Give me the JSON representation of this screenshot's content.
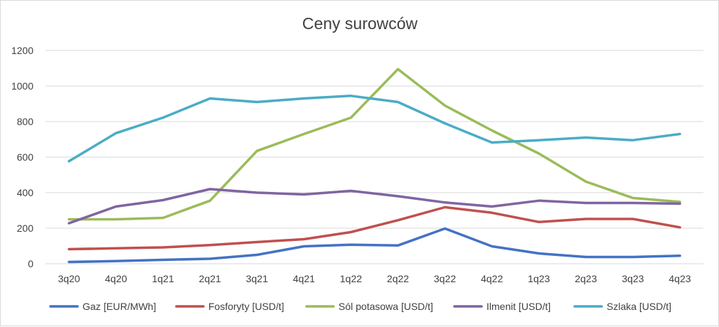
{
  "chart_data": {
    "type": "line",
    "title": "Ceny surowców",
    "xlabel": "",
    "ylabel": "",
    "ylim": [
      0,
      1200
    ],
    "yticks": [
      0,
      200,
      400,
      600,
      800,
      1000,
      1200
    ],
    "grid": true,
    "legend_position": "bottom",
    "categories": [
      "3q20",
      "4q20",
      "1q21",
      "2q21",
      "3q21",
      "4q21",
      "1q22",
      "2q22",
      "3q22",
      "4q22",
      "1q23",
      "2q23",
      "3q23",
      "4q23"
    ],
    "series": [
      {
        "name": "Gaz [EUR/MWh]",
        "color": "#4472c4",
        "values": [
          10,
          15,
          22,
          28,
          50,
          98,
          107,
          103,
          198,
          98,
          58,
          38,
          38,
          45
        ]
      },
      {
        "name": "Fosforyty [USD/t]",
        "color": "#c0504d",
        "values": [
          82,
          87,
          92,
          105,
          122,
          138,
          178,
          245,
          318,
          287,
          235,
          252,
          252,
          205
        ]
      },
      {
        "name": "Sól potasowa [USD/t]",
        "color": "#9bbb59",
        "values": [
          250,
          250,
          258,
          355,
          635,
          730,
          822,
          1095,
          890,
          750,
          620,
          462,
          370,
          348
        ]
      },
      {
        "name": "Ilmenit [USD/t]",
        "color": "#8064a2",
        "values": [
          228,
          322,
          358,
          420,
          400,
          390,
          410,
          380,
          345,
          322,
          355,
          342,
          342,
          338
        ]
      },
      {
        "name": "Szlaka [USD/t]",
        "color": "#4bacc6",
        "values": [
          577,
          735,
          822,
          930,
          910,
          930,
          945,
          910,
          790,
          682,
          695,
          710,
          695,
          730
        ]
      }
    ]
  }
}
